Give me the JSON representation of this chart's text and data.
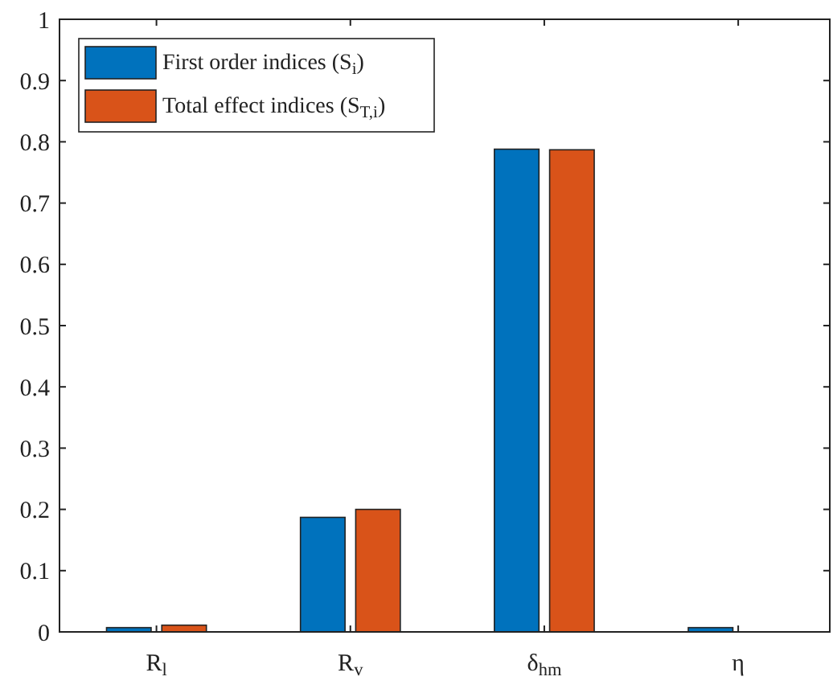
{
  "chart_data": {
    "type": "bar",
    "categories": [
      "R$_{l}$",
      "R$_{v}$",
      "δ$_{hm}$",
      "η"
    ],
    "series": [
      {
        "name": "First order indices (S$_{i}$)",
        "color": "#0072bd",
        "values": [
          0.007,
          0.187,
          0.788,
          0.007
        ]
      },
      {
        "name": "Total effect indices (S$_{T,i}$)",
        "color": "#d95319",
        "values": [
          0.011,
          0.2,
          0.787,
          null
        ]
      }
    ],
    "ylim": [
      0,
      1
    ],
    "yticks": [
      0,
      0.1,
      0.2,
      0.3,
      0.4,
      0.5,
      0.6,
      0.7,
      0.8,
      0.9,
      1
    ],
    "grid": false,
    "legend": "top left"
  }
}
